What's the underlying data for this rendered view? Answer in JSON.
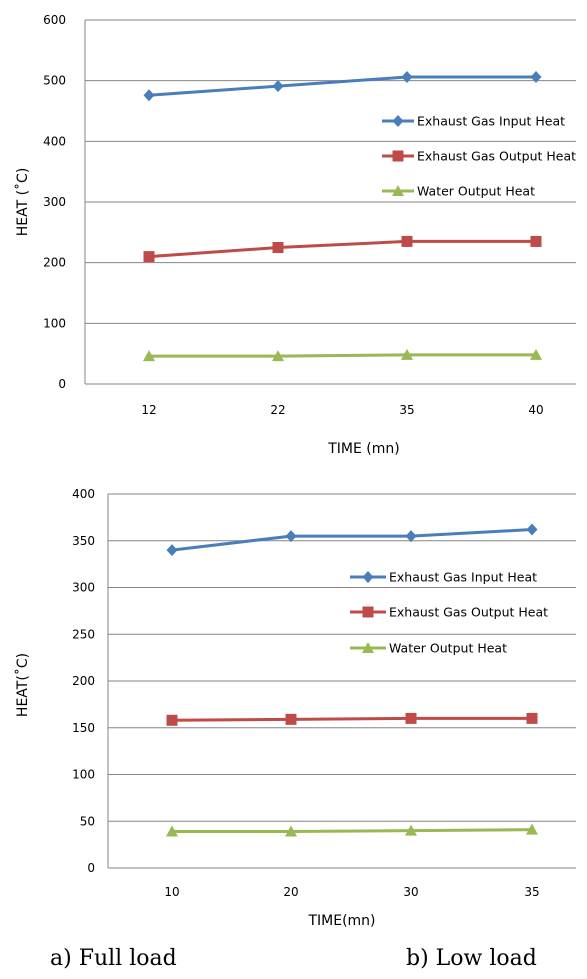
{
  "chart_data": [
    {
      "type": "line",
      "xlabel": "TIME (mn)",
      "ylabel": "HEAT (˚C)",
      "categories": [
        "12",
        "22",
        "35",
        "40"
      ],
      "ylim": [
        0,
        600
      ],
      "yticks": [
        0,
        100,
        200,
        300,
        400,
        500,
        600
      ],
      "grid": "horizontal",
      "legend": "right",
      "series": [
        {
          "name": "Exhaust Gas Input Heat",
          "values": [
            476,
            491,
            506,
            506
          ],
          "color": "#4a7ebb",
          "marker": "diamond"
        },
        {
          "name": "Exhaust Gas Output Heat",
          "values": [
            210,
            225,
            235,
            235
          ],
          "color": "#be4b48",
          "marker": "square"
        },
        {
          "name": "Water Output Heat",
          "values": [
            46,
            46,
            48,
            48
          ],
          "color": "#98b954",
          "marker": "triangle"
        }
      ]
    },
    {
      "type": "line",
      "xlabel": "TIME(mn)",
      "ylabel": "HEAT(˚C)",
      "categories": [
        "10",
        "20",
        "30",
        "35"
      ],
      "ylim": [
        0,
        400
      ],
      "yticks": [
        0,
        50,
        100,
        150,
        200,
        250,
        300,
        350,
        400
      ],
      "grid": "horizontal",
      "legend": "right",
      "series": [
        {
          "name": "Exhaust Gas Input Heat",
          "values": [
            340,
            355,
            355,
            362
          ],
          "color": "#4a7ebb",
          "marker": "diamond"
        },
        {
          "name": "Exhaust Gas Output Heat",
          "values": [
            158,
            159,
            160,
            160
          ],
          "color": "#be4b48",
          "marker": "square"
        },
        {
          "name": "Water Output Heat",
          "values": [
            39,
            39,
            40,
            41
          ],
          "color": "#98b954",
          "marker": "triangle"
        }
      ]
    }
  ],
  "captions": {
    "a": "a) Full load",
    "b": "b) Low load"
  }
}
